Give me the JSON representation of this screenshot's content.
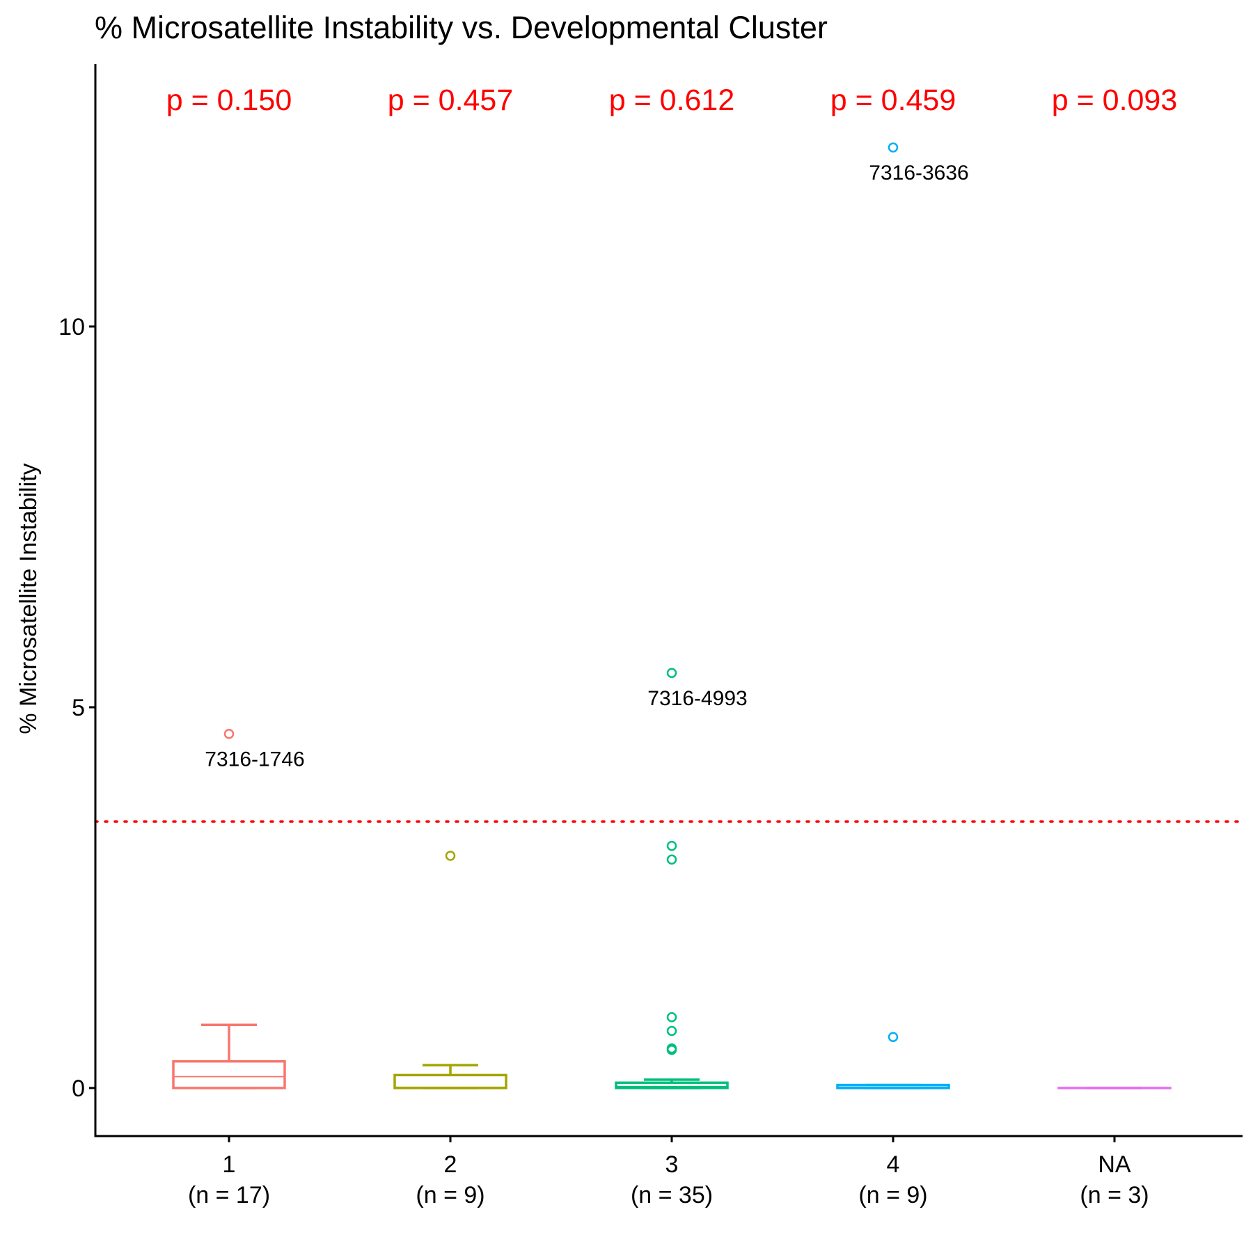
{
  "chart_data": {
    "type": "box",
    "title": "% Microsatellite Instability vs. Developmental Cluster",
    "xlabel": "",
    "ylabel": "% Microsatellite Instability",
    "ylim": [
      -0.65,
      13.5
    ],
    "yticks": [
      0,
      5,
      10
    ],
    "threshold": 3.5,
    "grid": false,
    "legend": "none",
    "categories": [
      "1",
      "2",
      "3",
      "4",
      "NA"
    ],
    "counts": [
      "(n = 17)",
      "(n = 9)",
      "(n = 35)",
      "(n = 9)",
      "(n = 3)"
    ],
    "colors": [
      "#F8766D",
      "#A3A500",
      "#00BF7D",
      "#00B0F6",
      "#E76BF3"
    ],
    "boxes": [
      {
        "category": "1",
        "lower_whisker": 0.0,
        "q1": 0.0,
        "median": 0.15,
        "q3": 0.35,
        "upper_whisker": 0.83
      },
      {
        "category": "2",
        "lower_whisker": 0.0,
        "q1": 0.0,
        "median": 0.01,
        "q3": 0.17,
        "upper_whisker": 0.3
      },
      {
        "category": "3",
        "lower_whisker": 0.0,
        "q1": 0.0,
        "median": 0.02,
        "q3": 0.07,
        "upper_whisker": 0.11
      },
      {
        "category": "4",
        "lower_whisker": 0.0,
        "q1": 0.0,
        "median": 0.01,
        "q3": 0.04,
        "upper_whisker": 0.04
      },
      {
        "category": "NA",
        "lower_whisker": 0.0,
        "q1": 0.0,
        "median": 0.0,
        "q3": 0.0,
        "upper_whisker": 0.0
      }
    ],
    "outliers": [
      {
        "category": "1",
        "value": 4.65,
        "label": "7316-1746"
      },
      {
        "category": "2",
        "value": 3.05
      },
      {
        "category": "3",
        "value": 5.45,
        "label": "7316-4993"
      },
      {
        "category": "3",
        "value": 3.18
      },
      {
        "category": "3",
        "value": 3.0
      },
      {
        "category": "3",
        "value": 0.93
      },
      {
        "category": "3",
        "value": 0.75
      },
      {
        "category": "3",
        "value": 0.5
      },
      {
        "category": "3",
        "value": 0.52
      },
      {
        "category": "4",
        "value": 12.35,
        "label": "7316-3636"
      },
      {
        "category": "4",
        "value": 0.67
      }
    ],
    "pvalues": [
      "p = 0.150",
      "p = 0.457",
      "p = 0.612",
      "p = 0.459",
      "p = 0.093"
    ]
  }
}
